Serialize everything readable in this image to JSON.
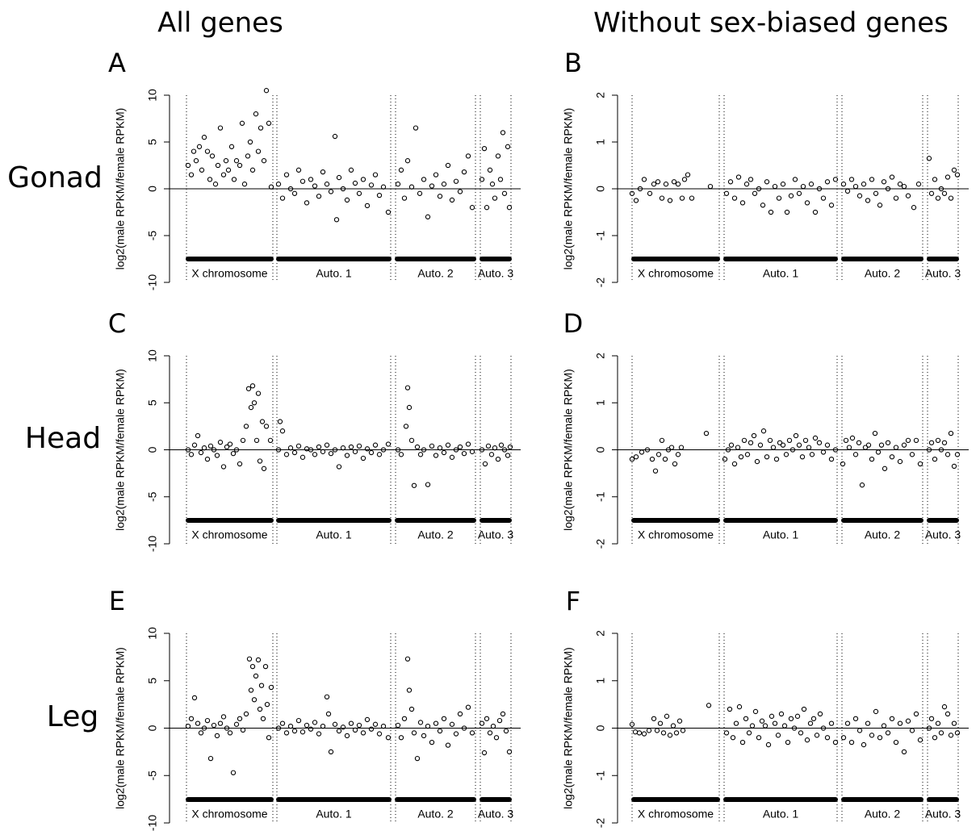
{
  "column_titles": [
    "All genes",
    "Without sex-biased genes"
  ],
  "row_titles": [
    "Gonad",
    "Head",
    "Leg"
  ],
  "chart_data": [
    {
      "type": "scatter",
      "panel": "A",
      "ylabel": "log2(male RPKM/female RPKM)",
      "color": "#000000",
      "xlim": [
        0,
        440
      ],
      "ylim": [
        -10,
        10
      ],
      "yticks": [
        -10,
        -5,
        0,
        5,
        10
      ],
      "hline": 0,
      "regions": [
        {
          "label": "X chromosome",
          "start": 26,
          "end": 133
        },
        {
          "label": "Auto. 1",
          "start": 138,
          "end": 279
        },
        {
          "label": "Auto. 2",
          "start": 285,
          "end": 384
        },
        {
          "label": "Auto. 3",
          "start": 390,
          "end": 428
        }
      ],
      "x": [
        28,
        32,
        35,
        38,
        42,
        45,
        48,
        52,
        55,
        58,
        62,
        65,
        68,
        72,
        75,
        78,
        82,
        85,
        88,
        92,
        95,
        98,
        102,
        105,
        108,
        112,
        115,
        118,
        122,
        125,
        128,
        131,
        140,
        145,
        150,
        155,
        160,
        165,
        170,
        175,
        180,
        185,
        190,
        195,
        200,
        205,
        210,
        212,
        215,
        220,
        225,
        230,
        235,
        240,
        245,
        250,
        255,
        260,
        265,
        270,
        276,
        288,
        292,
        296,
        300,
        305,
        310,
        315,
        320,
        325,
        330,
        335,
        340,
        345,
        350,
        355,
        360,
        365,
        370,
        375,
        380,
        392,
        395,
        398,
        402,
        405,
        408,
        412,
        415,
        418,
        420,
        424,
        426
      ],
      "values": [
        2.5,
        1.5,
        4,
        3,
        4.5,
        2,
        5.5,
        4,
        1,
        3.5,
        0.5,
        2.5,
        6.5,
        1.5,
        3,
        2,
        4.5,
        1,
        3,
        2.5,
        7,
        0.5,
        3.5,
        5,
        2,
        8,
        4,
        6.5,
        3,
        10.5,
        7,
        0.2,
        0.5,
        -1,
        1.5,
        0,
        -0.5,
        2,
        0.8,
        -1.5,
        1,
        0.3,
        -0.8,
        1.8,
        0.5,
        -0.3,
        5.6,
        -3.3,
        1.2,
        0,
        -1.2,
        2,
        0.6,
        -0.5,
        1,
        -1.8,
        0.4,
        1.5,
        -0.7,
        0.2,
        -2.5,
        0.5,
        2,
        -1,
        3,
        0.2,
        6.5,
        -0.5,
        1,
        -3,
        0.3,
        1.5,
        -0.8,
        0.5,
        2.5,
        -1.2,
        0.8,
        -0.3,
        1.8,
        3.5,
        -2,
        1,
        4.3,
        -2,
        2,
        0.5,
        -1,
        3.5,
        1,
        6,
        -0.5,
        4.5,
        -2
      ]
    },
    {
      "type": "scatter",
      "panel": "B",
      "ylabel": "log2(male RPKM/female RPKM)",
      "color": "#000000",
      "xlim": [
        0,
        440
      ],
      "ylim": [
        -2,
        2
      ],
      "yticks": [
        -2,
        -1,
        0,
        1,
        2
      ],
      "hline": 0,
      "regions": [
        {
          "label": "X chromosome",
          "start": 23,
          "end": 131
        },
        {
          "label": "Auto. 1",
          "start": 137,
          "end": 277
        },
        {
          "label": "Auto. 2",
          "start": 283,
          "end": 383
        },
        {
          "label": "Auto. 3",
          "start": 389,
          "end": 427
        }
      ],
      "x": [
        23,
        28,
        33,
        38,
        45,
        50,
        55,
        60,
        65,
        70,
        75,
        80,
        85,
        88,
        92,
        97,
        120,
        140,
        145,
        150,
        155,
        160,
        165,
        170,
        175,
        180,
        185,
        190,
        195,
        200,
        205,
        210,
        215,
        220,
        225,
        230,
        235,
        240,
        245,
        250,
        255,
        260,
        265,
        270,
        275,
        285,
        290,
        295,
        300,
        305,
        310,
        315,
        320,
        325,
        330,
        335,
        340,
        345,
        350,
        355,
        360,
        365,
        372,
        378,
        391,
        394,
        398,
        402,
        406,
        410,
        414,
        418,
        422,
        426
      ],
      "values": [
        -0.1,
        -0.25,
        0,
        0.2,
        -0.1,
        0.1,
        0.15,
        -0.2,
        0.1,
        -0.25,
        0.15,
        0.1,
        -0.2,
        0.2,
        0.3,
        -0.2,
        0.05,
        -0.1,
        0.15,
        -0.2,
        0.25,
        -0.3,
        0.1,
        0.2,
        -0.1,
        0,
        -0.35,
        0.15,
        -0.5,
        0.05,
        -0.2,
        0.1,
        -0.5,
        -0.15,
        0.2,
        -0.1,
        0.05,
        -0.3,
        0.1,
        -0.5,
        0,
        -0.2,
        0.15,
        -0.35,
        0.2,
        0.1,
        -0.05,
        0.2,
        0.05,
        -0.15,
        0.1,
        -0.25,
        0.2,
        -0.1,
        -0.35,
        0.15,
        0,
        0.25,
        -0.2,
        0.1,
        0.05,
        -0.15,
        -0.4,
        0.1,
        0.65,
        -0.1,
        0.2,
        -0.2,
        0,
        -0.1,
        0.25,
        -0.2,
        0.4,
        0.3
      ]
    },
    {
      "type": "scatter",
      "panel": "C",
      "ylabel": "log2(male RPKM/female RPKM)",
      "color": "#000000",
      "xlim": [
        0,
        440
      ],
      "ylim": [
        -10,
        10
      ],
      "yticks": [
        -10,
        -5,
        0,
        5,
        10
      ],
      "hline": 0,
      "regions": [
        {
          "label": "X chromosome",
          "start": 26,
          "end": 133
        },
        {
          "label": "Auto. 1",
          "start": 138,
          "end": 279
        },
        {
          "label": "Auto. 2",
          "start": 285,
          "end": 384
        },
        {
          "label": "Auto. 3",
          "start": 390,
          "end": 428
        }
      ],
      "x": [
        28,
        32,
        36,
        40,
        44,
        48,
        52,
        56,
        60,
        64,
        68,
        72,
        76,
        80,
        84,
        88,
        92,
        96,
        100,
        103,
        106,
        108,
        110,
        113,
        115,
        117,
        120,
        122,
        125,
        130,
        140,
        142,
        145,
        150,
        155,
        160,
        165,
        170,
        175,
        180,
        185,
        190,
        195,
        200,
        205,
        210,
        215,
        220,
        225,
        230,
        235,
        240,
        245,
        250,
        255,
        260,
        265,
        270,
        276,
        288,
        292,
        298,
        300,
        302,
        305,
        308,
        312,
        316,
        320,
        325,
        330,
        335,
        340,
        345,
        350,
        355,
        360,
        365,
        370,
        375,
        380,
        392,
        396,
        400,
        404,
        408,
        412,
        416,
        420,
        424,
        427
      ],
      "values": [
        0,
        -0.5,
        0.5,
        1.5,
        -0.3,
        0.2,
        -1,
        0.4,
        0,
        -0.6,
        0.8,
        -1.8,
        0.3,
        0.6,
        -0.4,
        0,
        -1.5,
        1,
        2.5,
        6.5,
        4.5,
        6.8,
        5,
        1,
        6,
        -1.2,
        3,
        -2,
        2.5,
        1,
        0,
        3,
        2,
        -0.5,
        0.2,
        -0.3,
        0.4,
        -0.8,
        0.1,
        0,
        -0.5,
        0.3,
        -0.2,
        0.5,
        -0.4,
        0,
        -1.8,
        0.2,
        -0.6,
        0.3,
        -0.2,
        0.4,
        -0.9,
        0.1,
        -0.3,
        0.5,
        -0.5,
        0,
        0.6,
        0,
        -0.5,
        2.5,
        6.6,
        4.5,
        1,
        -3.8,
        0.3,
        -0.5,
        0,
        -3.7,
        0.4,
        -0.6,
        0.2,
        -0.3,
        0.5,
        -0.8,
        0,
        0.3,
        -0.4,
        0.6,
        -0.2,
        0,
        -1.5,
        0.4,
        -0.5,
        0.2,
        -1,
        0.5,
        0,
        -0.6,
        0.3
      ]
    },
    {
      "type": "scatter",
      "panel": "D",
      "ylabel": "log2(male RPKM/female RPKM)",
      "color": "#000000",
      "xlim": [
        0,
        440
      ],
      "ylim": [
        -2,
        2
      ],
      "yticks": [
        -2,
        -1,
        0,
        1,
        2
      ],
      "hline": 0,
      "regions": [
        {
          "label": "X chromosome",
          "start": 23,
          "end": 131
        },
        {
          "label": "Auto. 1",
          "start": 137,
          "end": 277
        },
        {
          "label": "Auto. 2",
          "start": 283,
          "end": 383
        },
        {
          "label": "Auto. 3",
          "start": 389,
          "end": 427
        }
      ],
      "x": [
        23,
        28,
        35,
        42,
        48,
        52,
        56,
        60,
        64,
        68,
        72,
        76,
        80,
        84,
        115,
        138,
        142,
        146,
        150,
        154,
        158,
        162,
        166,
        170,
        174,
        178,
        182,
        186,
        190,
        194,
        198,
        202,
        206,
        210,
        214,
        218,
        222,
        226,
        230,
        234,
        238,
        242,
        246,
        250,
        255,
        260,
        265,
        270,
        275,
        284,
        288,
        292,
        296,
        300,
        304,
        308,
        312,
        316,
        320,
        324,
        328,
        332,
        336,
        340,
        345,
        350,
        355,
        360,
        365,
        370,
        375,
        380,
        391,
        394,
        398,
        402,
        406,
        410,
        414,
        418,
        422,
        426
      ],
      "values": [
        -0.2,
        -0.15,
        -0.05,
        0,
        -0.2,
        -0.45,
        -0.1,
        0.2,
        -0.2,
        0,
        0.05,
        -0.3,
        -0.1,
        0.05,
        0.35,
        -0.2,
        0,
        0.1,
        -0.3,
        0.05,
        -0.15,
        0.2,
        -0.1,
        0.15,
        0.3,
        -0.25,
        0.1,
        0.4,
        -0.15,
        0.2,
        0.05,
        -0.2,
        0.15,
        0.1,
        -0.1,
        0.2,
        0,
        0.3,
        0.1,
        -0.15,
        0.2,
        0.05,
        -0.1,
        0.25,
        0.15,
        -0.05,
        0.1,
        -0.2,
        0,
        -0.3,
        0.2,
        0.05,
        0.25,
        -0.1,
        0.15,
        -0.75,
        0.05,
        0.1,
        -0.2,
        0.35,
        -0.05,
        0.1,
        -0.4,
        0.15,
        -0.15,
        0.05,
        -0.25,
        0.1,
        0.2,
        -0.1,
        0.2,
        -0.3,
        0,
        0.15,
        -0.2,
        0.2,
        0,
        0.15,
        -0.1,
        0.35,
        -0.35,
        -0.1
      ]
    },
    {
      "type": "scatter",
      "panel": "E",
      "ylabel": "log2(male RPKM/female RPKM)",
      "color": "#000000",
      "xlim": [
        0,
        440
      ],
      "ylim": [
        -10,
        10
      ],
      "yticks": [
        -10,
        -5,
        0,
        5,
        10
      ],
      "hline": 0,
      "regions": [
        {
          "label": "X chromosome",
          "start": 26,
          "end": 133
        },
        {
          "label": "Auto. 1",
          "start": 138,
          "end": 279
        },
        {
          "label": "Auto. 2",
          "start": 285,
          "end": 384
        },
        {
          "label": "Auto. 3",
          "start": 390,
          "end": 428
        }
      ],
      "x": [
        28,
        32,
        36,
        40,
        44,
        48,
        52,
        56,
        60,
        64,
        68,
        72,
        76,
        80,
        84,
        88,
        92,
        96,
        100,
        104,
        106,
        108,
        110,
        112,
        115,
        117,
        119,
        121,
        124,
        126,
        128,
        131,
        140,
        145,
        150,
        155,
        160,
        165,
        170,
        175,
        180,
        185,
        190,
        195,
        200,
        202,
        205,
        210,
        215,
        220,
        225,
        230,
        235,
        240,
        245,
        250,
        255,
        260,
        265,
        270,
        276,
        288,
        292,
        296,
        300,
        302,
        305,
        308,
        312,
        316,
        320,
        325,
        330,
        335,
        340,
        345,
        350,
        355,
        360,
        365,
        370,
        375,
        380,
        392,
        395,
        398,
        402,
        406,
        410,
        414,
        418,
        422,
        426
      ],
      "values": [
        0.2,
        1,
        3.2,
        0.5,
        -0.5,
        0,
        0.8,
        -3.2,
        0.3,
        -0.8,
        0.5,
        1.2,
        0,
        -0.5,
        -4.7,
        0.4,
        1,
        -0.2,
        1.5,
        7.3,
        4,
        6.5,
        3,
        5.5,
        7.2,
        2,
        4.5,
        1,
        6.5,
        2.5,
        -1,
        4.3,
        0,
        0.5,
        -0.5,
        0.2,
        -0.3,
        0.8,
        -0.4,
        0.3,
        -0.1,
        0.6,
        -0.6,
        0.2,
        3.3,
        1.5,
        -2.5,
        0.4,
        -0.3,
        0.1,
        -0.8,
        0.5,
        -0.2,
        0.3,
        -0.5,
        0.9,
        -0.1,
        0.4,
        -0.6,
        0.2,
        -1,
        0.3,
        -1,
        1,
        7.3,
        4,
        2,
        -0.5,
        -3.2,
        0.6,
        -0.8,
        0.2,
        -1.5,
        0.5,
        -0.3,
        1,
        -1.8,
        0.4,
        -0.6,
        1.5,
        0,
        2.2,
        -0.5,
        0.5,
        -2.6,
        1,
        -0.5,
        0.2,
        -1,
        0.8,
        1.5,
        -0.3,
        -2.5
      ]
    },
    {
      "type": "scatter",
      "panel": "F",
      "ylabel": "log2(male RPKM/female RPKM)",
      "color": "#000000",
      "xlim": [
        0,
        440
      ],
      "ylim": [
        -2,
        2
      ],
      "yticks": [
        -2,
        -1,
        0,
        1,
        2
      ],
      "hline": 0,
      "regions": [
        {
          "label": "X chromosome",
          "start": 23,
          "end": 131
        },
        {
          "label": "Auto. 1",
          "start": 137,
          "end": 277
        },
        {
          "label": "Auto. 2",
          "start": 283,
          "end": 383
        },
        {
          "label": "Auto. 3",
          "start": 389,
          "end": 427
        }
      ],
      "x": [
        23,
        27,
        32,
        38,
        44,
        50,
        54,
        58,
        62,
        66,
        70,
        74,
        78,
        82,
        86,
        118,
        140,
        144,
        148,
        152,
        156,
        160,
        164,
        168,
        172,
        176,
        180,
        184,
        188,
        192,
        196,
        200,
        204,
        208,
        212,
        216,
        220,
        224,
        228,
        232,
        236,
        240,
        244,
        248,
        252,
        256,
        260,
        265,
        270,
        275,
        285,
        290,
        295,
        300,
        305,
        310,
        315,
        320,
        325,
        330,
        335,
        340,
        345,
        350,
        355,
        360,
        365,
        370,
        375,
        380,
        391,
        394,
        398,
        402,
        406,
        410,
        414,
        418,
        422,
        426
      ],
      "values": [
        0.08,
        -0.08,
        -0.1,
        -0.12,
        -0.05,
        0.2,
        -0.05,
        0.1,
        -0.1,
        0.25,
        -0.15,
        0.05,
        -0.1,
        0.15,
        -0.05,
        0.48,
        -0.1,
        0.4,
        -0.2,
        0.1,
        0.45,
        -0.3,
        0.2,
        -0.1,
        0.05,
        0.35,
        -0.2,
        0.15,
        0.05,
        -0.35,
        0.25,
        0.1,
        -0.15,
        0.3,
        0.05,
        -0.3,
        0.2,
        0,
        0.25,
        -0.1,
        0.4,
        -0.25,
        0.1,
        0.2,
        -0.15,
        0.3,
        0,
        -0.2,
        0.1,
        -0.3,
        -0.2,
        0.1,
        -0.3,
        0.2,
        -0.05,
        -0.35,
        0.1,
        -0.15,
        0.35,
        -0.2,
        0.05,
        -0.1,
        0.2,
        -0.3,
        0.1,
        -0.5,
        0.15,
        -0.05,
        0.3,
        -0.25,
        0,
        0.2,
        -0.2,
        0.1,
        -0.1,
        0.45,
        0.3,
        -0.15,
        0.1,
        -0.1
      ]
    }
  ]
}
